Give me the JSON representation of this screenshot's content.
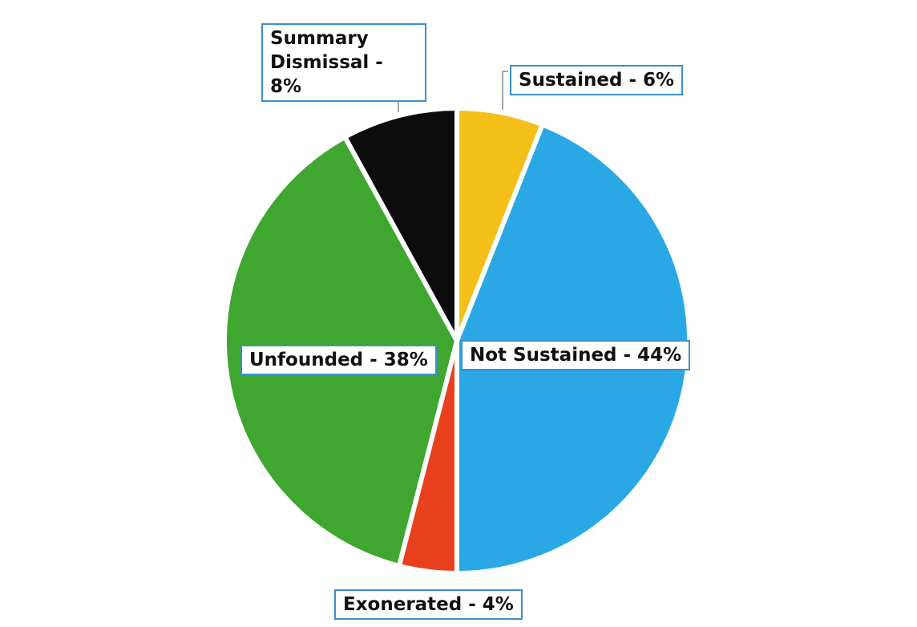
{
  "chart_data": {
    "type": "pie",
    "title": "",
    "slices": [
      {
        "label": "Sustained - 6%",
        "value": 6,
        "color": "#f5bf1a"
      },
      {
        "label": "Not Sustained - 44%",
        "value": 44,
        "color": "#2aa8e6"
      },
      {
        "label": "Exonerated - 4%",
        "value": 4,
        "color": "#e8401c"
      },
      {
        "label": "Unfounded - 38%",
        "value": 38,
        "color": "#3fa62f"
      },
      {
        "label": "Summary Dismissal - 8%",
        "value": 8,
        "color": "#0c0c0c"
      }
    ],
    "start_angle_deg": 0,
    "direction": "clockwise",
    "legend": "none",
    "slice_border_color": "#ffffff",
    "label_border_color": "#3a8fd0",
    "leader_line_color": "#888888"
  }
}
